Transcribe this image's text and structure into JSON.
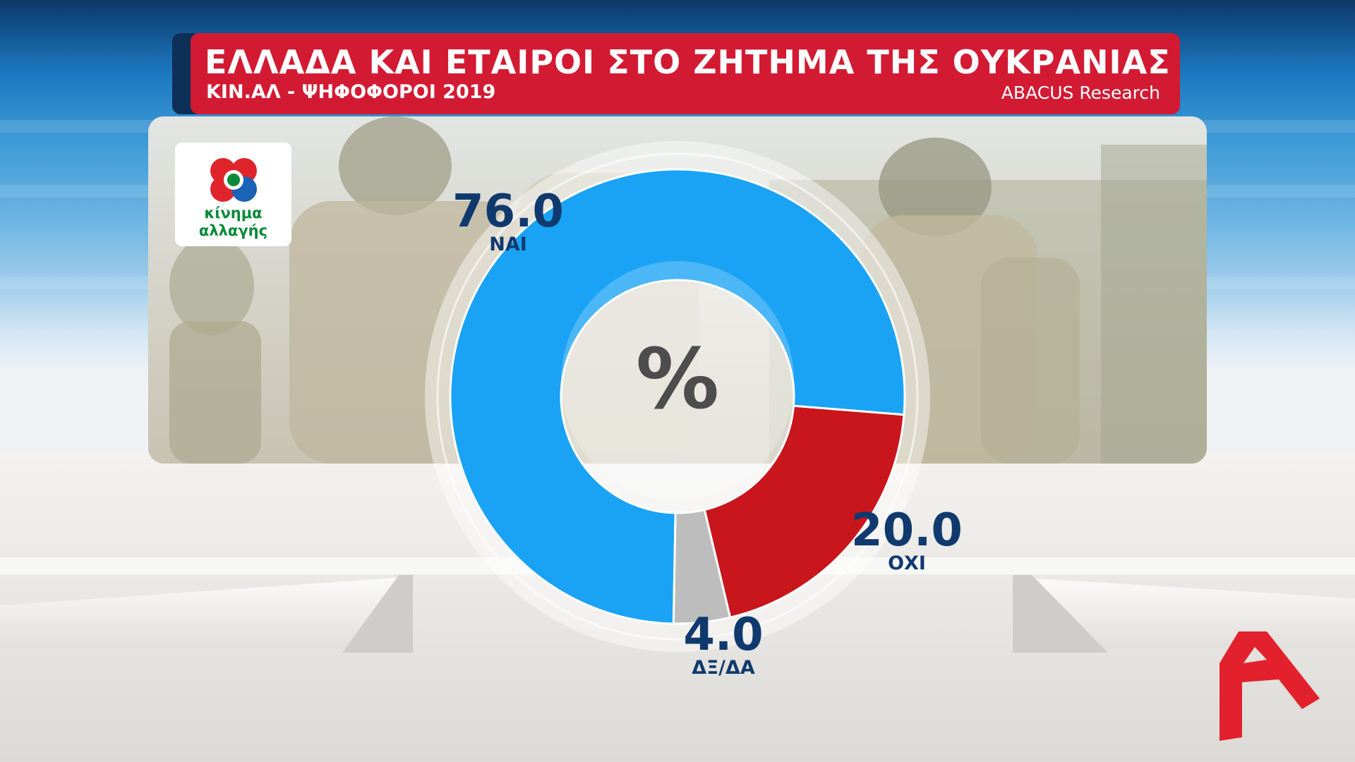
{
  "header": {
    "title": "ΕΛΛΑΔΑ ΚΑΙ ΕΤΑΙΡΟΙ ΣΤΟ ΖΗΤΗΜΑ ΤΗΣ ΟΥΚΡΑΝΙΑΣ",
    "subtitle": "ΚΙΝ.ΑΛ - ΨΗΦΟΦΟΡΟΙ 2019",
    "source": "ABACUS Research"
  },
  "party_logo": {
    "line1": "κίνημα",
    "line2": "αλλαγής"
  },
  "center_symbol": "%",
  "colors": {
    "yes": "#1aa3f5",
    "no": "#c8161c",
    "dk": "#bdbdbd",
    "label": "#103a6e",
    "banner": "#d31a33",
    "channel_logo": "#e3212d"
  },
  "chart_data": {
    "type": "pie",
    "style": "donut",
    "categories": [
      "ΝΑΙ",
      "ΟΧΙ",
      "ΔΞ/ΔΑ"
    ],
    "values": [
      76.0,
      20.0,
      4.0
    ],
    "labels": [
      "76.0",
      "20.0",
      "4.0"
    ]
  }
}
